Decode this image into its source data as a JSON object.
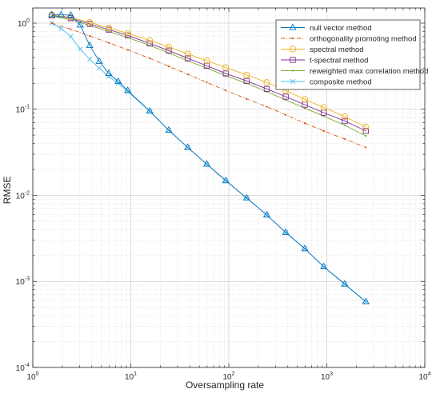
{
  "chart_data": {
    "type": "line",
    "title": "",
    "xlabel": "Oversampling rate",
    "ylabel": "RMSE",
    "xscale": "log",
    "yscale": "log",
    "xlim": [
      1,
      10000
    ],
    "ylim": [
      0.0001,
      1.5
    ],
    "grid": true,
    "legend_position": "top-right",
    "x_tick_labels": [
      "10^0",
      "10^1",
      "10^2",
      "10^3",
      "10^4"
    ],
    "y_tick_labels": [
      "10^0",
      "10^-1",
      "10^-2",
      "10^-3",
      "10^-4"
    ],
    "series": [
      {
        "name": "null vector method",
        "color": "#0072bd",
        "marker": "triangle",
        "x": [
          1.56,
          1.95,
          2.44,
          3.05,
          3.81,
          4.77,
          5.96,
          7.45,
          9.31,
          15.6,
          24.4,
          38.1,
          59.6,
          93.1,
          152,
          244,
          381,
          596,
          931,
          1524,
          2500
        ],
        "y": [
          1.25,
          1.25,
          1.24,
          0.95,
          0.55,
          0.36,
          0.26,
          0.21,
          0.165,
          0.095,
          0.057,
          0.036,
          0.023,
          0.0148,
          0.0093,
          0.0059,
          0.0037,
          0.0024,
          0.00148,
          0.00093,
          0.00058
        ]
      },
      {
        "name": "orthogonality promoting method",
        "color": "#d95319",
        "marker": "dot",
        "x": [
          1.56,
          2.44,
          3.81,
          5.96,
          9.31,
          15.6,
          24.4,
          38.1,
          59.6,
          93.1,
          152,
          244,
          381,
          596,
          931,
          1524,
          2500
        ],
        "y": [
          1.0,
          0.85,
          0.71,
          0.59,
          0.49,
          0.39,
          0.315,
          0.255,
          0.205,
          0.165,
          0.132,
          0.107,
          0.086,
          0.069,
          0.056,
          0.045,
          0.036
        ]
      },
      {
        "name": "spectral method",
        "color": "#edb120",
        "marker": "circle",
        "x": [
          1.56,
          2.44,
          3.81,
          5.96,
          9.31,
          15.6,
          24.4,
          38.1,
          59.6,
          93.1,
          152,
          244,
          381,
          596,
          931,
          1524,
          2500
        ],
        "y": [
          1.25,
          1.17,
          1.02,
          0.88,
          0.76,
          0.63,
          0.53,
          0.44,
          0.365,
          0.305,
          0.25,
          0.205,
          0.165,
          0.13,
          0.105,
          0.082,
          0.062
        ]
      },
      {
        "name": "t-spectral method",
        "color": "#7e2f8e",
        "marker": "square",
        "x": [
          1.56,
          2.44,
          3.81,
          5.96,
          9.31,
          15.6,
          24.4,
          38.1,
          59.6,
          93.1,
          152,
          244,
          381,
          596,
          931,
          1524,
          2500
        ],
        "y": [
          1.23,
          1.14,
          0.98,
          0.84,
          0.72,
          0.58,
          0.48,
          0.39,
          0.32,
          0.26,
          0.213,
          0.172,
          0.14,
          0.113,
          0.091,
          0.073,
          0.056
        ]
      },
      {
        "name": "reweighted max correlation method",
        "color": "#77ac30",
        "marker": "dot",
        "x": [
          1.56,
          2.44,
          3.81,
          5.96,
          9.31,
          15.6,
          24.4,
          38.1,
          59.6,
          93.1,
          152,
          244,
          381,
          596,
          931,
          1524,
          2500
        ],
        "y": [
          1.2,
          1.1,
          0.94,
          0.8,
          0.68,
          0.55,
          0.45,
          0.365,
          0.3,
          0.245,
          0.2,
          0.16,
          0.128,
          0.103,
          0.083,
          0.065,
          0.049
        ]
      },
      {
        "name": "composite method",
        "color": "#4dbeee",
        "marker": "x",
        "x": [
          1.56,
          1.95,
          2.44,
          3.05,
          3.81,
          4.77,
          5.96,
          7.45,
          9.31,
          15.6,
          24.4,
          38.1,
          59.6,
          93.1,
          152,
          244,
          381,
          596,
          931,
          1524,
          2500
        ],
        "y": [
          1.0,
          0.86,
          0.7,
          0.5,
          0.38,
          0.3,
          0.24,
          0.2,
          0.16,
          0.095,
          0.057,
          0.036,
          0.023,
          0.0148,
          0.0093,
          0.0059,
          0.0037,
          0.0024,
          0.00148,
          0.00093,
          0.00058
        ]
      }
    ]
  }
}
